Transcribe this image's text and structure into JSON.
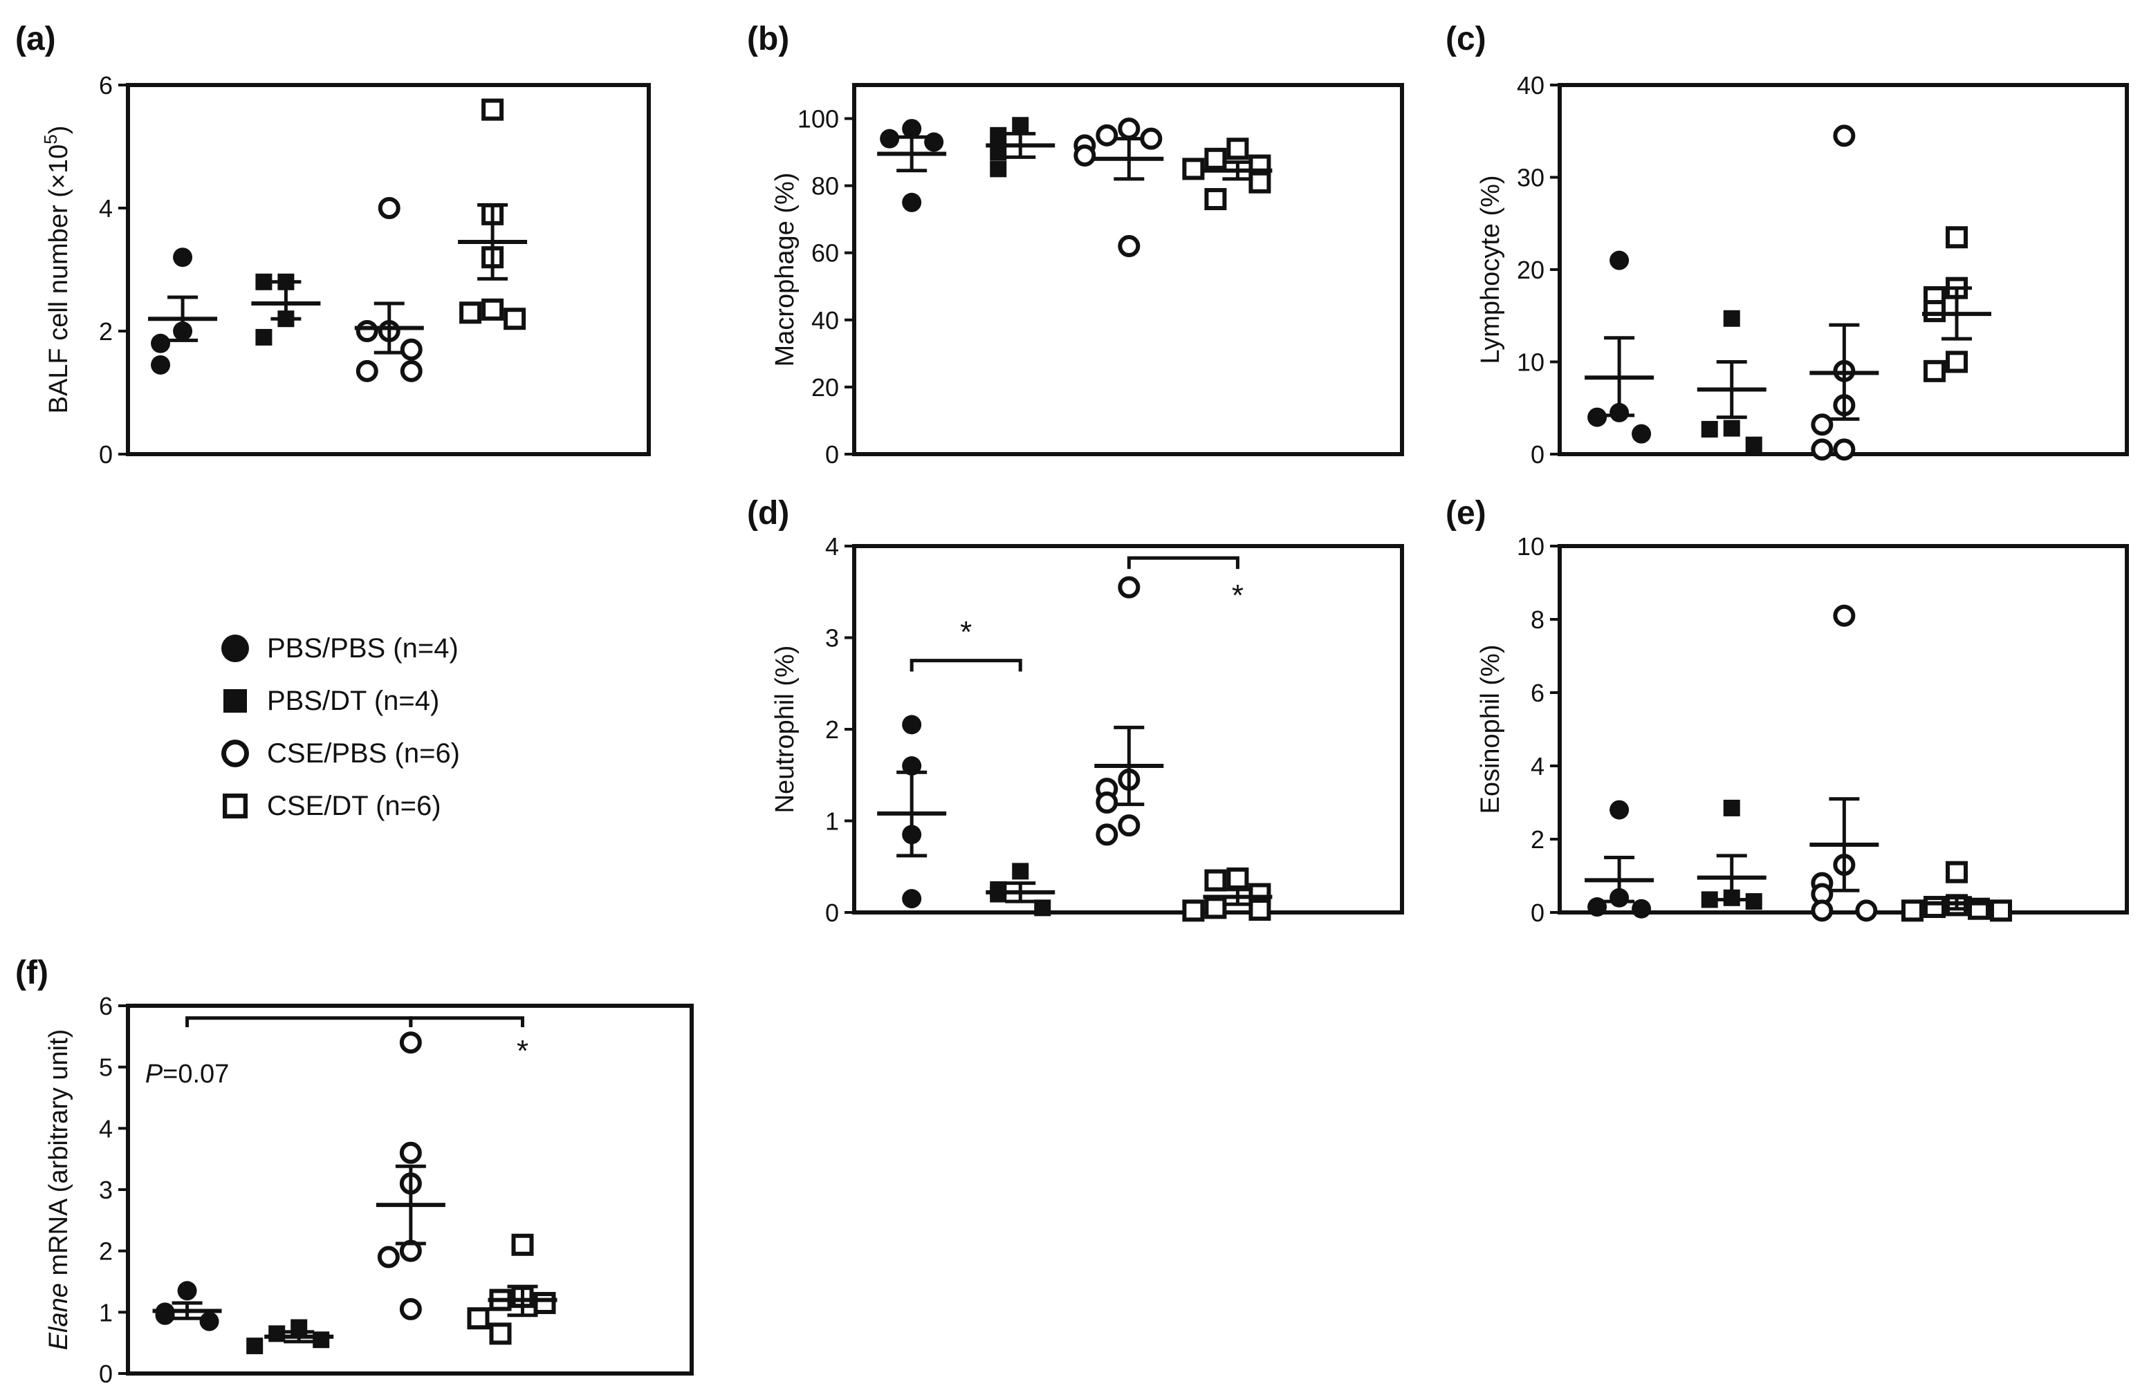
{
  "figure": {
    "groups": [
      {
        "label": "PBS/PBS (n=4)",
        "marker": "filled-circle-icon"
      },
      {
        "label": "PBS/DT (n=4)",
        "marker": "filled-square-icon"
      },
      {
        "label": "CSE/PBS (n=6)",
        "marker": "open-circle-icon"
      },
      {
        "label": "CSE/DT (n=6)",
        "marker": "open-square-icon"
      }
    ],
    "ink_color": "#111111"
  },
  "chart_data": [
    {
      "panel": "(a)",
      "type": "scatter",
      "ylabel_parts": [
        {
          "t": "BALF cell number ("
        },
        {
          "t": "×10"
        },
        {
          "t": "5",
          "sup": true
        },
        {
          "t": ")"
        }
      ],
      "ylim": [
        0,
        6
      ],
      "yticks": [
        "0",
        "2",
        "4",
        "6"
      ],
      "groups": [
        {
          "name": "PBS/PBS",
          "points": [
            3.2,
            2.0,
            1.8,
            1.45
          ],
          "mean": 2.2,
          "sem": [
            1.85,
            2.55
          ]
        },
        {
          "name": "PBS/DT",
          "points": [
            2.8,
            2.8,
            2.2,
            1.9
          ],
          "mean": 2.45,
          "sem": [
            2.2,
            2.8
          ]
        },
        {
          "name": "CSE/PBS",
          "points": [
            4.0,
            2.0,
            2.0,
            1.7,
            1.35,
            1.35
          ],
          "mean": 2.05,
          "sem": [
            1.65,
            2.45
          ]
        },
        {
          "name": "CSE/DT",
          "points": [
            5.6,
            3.9,
            3.2,
            2.35,
            2.3,
            2.2
          ],
          "mean": 3.45,
          "sem": [
            2.85,
            4.05
          ]
        }
      ],
      "brackets": [],
      "annotations": []
    },
    {
      "panel": "(b)",
      "type": "scatter",
      "ylabel_parts": [
        {
          "t": "Macrophage (%)"
        }
      ],
      "ylim": [
        0,
        110
      ],
      "yticks": [
        "0",
        "20",
        "40",
        "60",
        "80",
        "100"
      ],
      "groups": [
        {
          "name": "PBS/PBS",
          "points": [
            97,
            94,
            93,
            75
          ],
          "mean": 89.5,
          "sem": [
            84.5,
            94.5
          ]
        },
        {
          "name": "PBS/DT",
          "points": [
            98,
            95,
            90,
            85
          ],
          "mean": 92,
          "sem": [
            88.5,
            95.5
          ]
        },
        {
          "name": "CSE/PBS",
          "points": [
            97,
            95,
            94,
            92,
            89,
            62
          ],
          "mean": 88,
          "sem": [
            82,
            94
          ]
        },
        {
          "name": "CSE/DT",
          "points": [
            91,
            88,
            86,
            85,
            81,
            76
          ],
          "mean": 84.5,
          "sem": [
            82,
            87
          ]
        }
      ],
      "brackets": [],
      "annotations": []
    },
    {
      "panel": "(c)",
      "type": "scatter",
      "ylabel_parts": [
        {
          "t": "Lymphocyte (%)"
        }
      ],
      "ylim": [
        0,
        40
      ],
      "yticks": [
        "0",
        "10",
        "20",
        "30",
        "40"
      ],
      "groups": [
        {
          "name": "PBS/PBS",
          "points": [
            21,
            4.5,
            4,
            2.2
          ],
          "mean": 8.3,
          "sem": [
            4.2,
            12.6
          ]
        },
        {
          "name": "PBS/DT",
          "points": [
            14.7,
            2.8,
            2.7,
            1.0
          ],
          "mean": 7.0,
          "sem": [
            4.0,
            10.0
          ]
        },
        {
          "name": "CSE/PBS",
          "points": [
            34.5,
            9,
            5.3,
            3.2,
            0.5,
            0.5
          ],
          "mean": 8.8,
          "sem": [
            3.8,
            14.0
          ]
        },
        {
          "name": "CSE/DT",
          "points": [
            23.5,
            18,
            17,
            15.5,
            10,
            9
          ],
          "mean": 15.2,
          "sem": [
            12.5,
            18.0
          ]
        }
      ],
      "brackets": [],
      "annotations": []
    },
    {
      "panel": "(d)",
      "type": "scatter",
      "ylabel_parts": [
        {
          "t": "Neutrophil (%)"
        }
      ],
      "ylim": [
        0,
        4
      ],
      "yticks": [
        "0",
        "1",
        "2",
        "3",
        "4"
      ],
      "groups": [
        {
          "name": "PBS/PBS",
          "points": [
            2.05,
            1.6,
            0.85,
            0.15
          ],
          "mean": 1.08,
          "sem": [
            0.62,
            1.53
          ]
        },
        {
          "name": "PBS/DT",
          "points": [
            0.45,
            0.25,
            0.2,
            0.05
          ],
          "mean": 0.22,
          "sem": [
            0.12,
            0.32
          ]
        },
        {
          "name": "CSE/PBS",
          "points": [
            3.55,
            1.45,
            1.35,
            1.2,
            0.95,
            0.85
          ],
          "mean": 1.6,
          "sem": [
            1.18,
            2.02
          ]
        },
        {
          "name": "CSE/DT",
          "points": [
            0.37,
            0.35,
            0.2,
            0.05,
            0.03,
            0.02
          ],
          "mean": 0.17,
          "sem": [
            0.09,
            0.25
          ]
        }
      ],
      "brackets": [
        {
          "from": 0,
          "to": 1,
          "y": 2.75,
          "drop": 0.12
        },
        {
          "from": 2,
          "to": 3,
          "y": 3.87,
          "drop": 0.12
        }
      ],
      "annotations": [
        {
          "text": "*",
          "group": 0.5,
          "y": 2.95
        },
        {
          "text": "*",
          "group": 3.0,
          "y": 3.35
        }
      ]
    },
    {
      "panel": "(e)",
      "type": "scatter",
      "ylabel_parts": [
        {
          "t": "Eosinophil (%)"
        }
      ],
      "ylim": [
        0,
        10
      ],
      "yticks": [
        "0",
        "2",
        "4",
        "6",
        "8",
        "10"
      ],
      "groups": [
        {
          "name": "PBS/PBS",
          "points": [
            2.8,
            0.4,
            0.15,
            0.1
          ],
          "mean": 0.88,
          "sem": [
            0.3,
            1.5
          ]
        },
        {
          "name": "PBS/DT",
          "points": [
            2.85,
            0.4,
            0.35,
            0.3
          ],
          "mean": 0.95,
          "sem": [
            0.35,
            1.55
          ]
        },
        {
          "name": "CSE/PBS",
          "points": [
            8.1,
            1.3,
            0.8,
            0.5,
            0.05,
            0.05
          ],
          "mean": 1.85,
          "sem": [
            0.6,
            3.1
          ]
        },
        {
          "name": "CSE/DT",
          "points": [
            1.1,
            0.2,
            0.15,
            0.1,
            0.05,
            0.05
          ],
          "mean": 0.25,
          "sem": [
            0.1,
            0.4
          ]
        }
      ],
      "brackets": [],
      "annotations": []
    },
    {
      "panel": "(f)",
      "type": "scatter",
      "ylabel_parts": [
        {
          "t": "Elane",
          "italic": true
        },
        {
          "t": " mRNA (arbitrary unit)"
        }
      ],
      "ylim": [
        0,
        6
      ],
      "yticks": [
        "0",
        "1",
        "2",
        "3",
        "4",
        "5",
        "6"
      ],
      "groups": [
        {
          "name": "PBS/PBS",
          "points": [
            1.35,
            1.0,
            0.95,
            0.85
          ],
          "mean": 1.02,
          "sem": [
            0.9,
            1.15
          ]
        },
        {
          "name": "PBS/DT",
          "points": [
            0.75,
            0.65,
            0.55,
            0.45
          ],
          "mean": 0.6,
          "sem": [
            0.52,
            0.68
          ]
        },
        {
          "name": "CSE/PBS",
          "points": [
            5.4,
            3.6,
            3.1,
            2.0,
            1.9,
            1.05
          ],
          "mean": 2.75,
          "sem": [
            2.12,
            3.38
          ]
        },
        {
          "name": "CSE/DT",
          "points": [
            2.1,
            1.25,
            1.2,
            1.15,
            0.9,
            0.65
          ],
          "mean": 1.2,
          "sem": [
            0.95,
            1.42
          ]
        }
      ],
      "brackets": [
        {
          "from": 0,
          "to": 2,
          "y": 5.8,
          "drop": 0.15
        },
        {
          "from": 2,
          "to": 3,
          "y": 5.8,
          "drop": 0.15
        }
      ],
      "annotations": [
        {
          "text": "P=0.07",
          "group": 0.0,
          "y": 4.75,
          "italic_prefix": "P"
        },
        {
          "text": "*",
          "group": 3.0,
          "y": 5.1
        }
      ]
    }
  ]
}
